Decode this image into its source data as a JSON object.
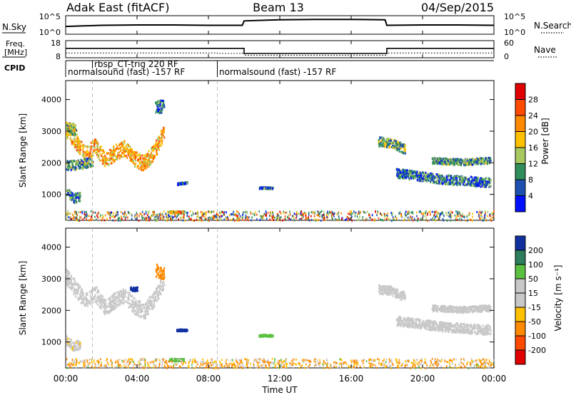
{
  "header": {
    "station": "Adak East (fitACF)",
    "beam": "Beam 13",
    "date": "04/Sep/2015"
  },
  "params_panel": {
    "nsky_label": "N.Sky",
    "nsky_ticks": [
      "10^5",
      "10^0"
    ],
    "nsearch_label": "N.Search",
    "freq_label_1": "Freq.",
    "freq_label_2": "[MHz]",
    "freq_ticks": [
      "18",
      "8"
    ],
    "nave_ticks": [
      "60",
      "0"
    ],
    "nave_label": "Nave",
    "cpid_label": "CPID",
    "cpid_segments": [
      {
        "label": "rbsp_CT-trig 220 RF",
        "start_hour": 1.5,
        "end_hour": 8.5
      },
      {
        "label": "normalsound (fast) -157 RF",
        "start_hour": 0,
        "end_hour": 8.5
      },
      {
        "label": "normalsound (fast) -157 RF",
        "start_hour": 8.5,
        "end_hour": 24
      }
    ]
  },
  "axes": {
    "x_label": "Time UT",
    "x_ticks": [
      "00:00",
      "04:00",
      "08:00",
      "12:00",
      "16:00",
      "20:00",
      "00:00"
    ],
    "y_label": "Slant Range [km]",
    "y_ticks": [
      "4000",
      "3000",
      "2000",
      "1000"
    ]
  },
  "power_scale": {
    "label": "Power [dB]",
    "ticks": [
      "28",
      "24",
      "20",
      "16",
      "12",
      "8",
      "4"
    ],
    "colors": [
      "#e00000",
      "#ff4a00",
      "#ff8a00",
      "#ffc000",
      "#a8c860",
      "#2f8e5c",
      "#1e50b0",
      "#0010ff"
    ]
  },
  "velocity_scale": {
    "label": "Velocity [m s⁻¹]",
    "ticks": [
      "200",
      "100",
      "50",
      "15",
      "-15",
      "-50",
      "-100",
      "-200"
    ],
    "colors": [
      "#1030a0",
      "#2e7d5c",
      "#5cc040",
      "#c8c8c8",
      "#c8c8c8",
      "#ffc000",
      "#ff8a00",
      "#ff4a00",
      "#e00000"
    ]
  },
  "chart_data": [
    {
      "type": "line",
      "title": "N.Sky / N.Search",
      "x_range_hours": [
        0,
        24
      ],
      "series": [
        {
          "name": "N.Sky",
          "x": [
            0,
            1,
            2,
            4,
            6,
            8,
            9.9,
            10,
            12,
            14,
            16,
            17.9,
            18,
            20,
            22,
            24
          ],
          "y": [
            0.42,
            0.45,
            0.48,
            0.5,
            0.5,
            0.48,
            0.48,
            0.72,
            0.78,
            0.8,
            0.8,
            0.78,
            0.48,
            0.5,
            0.5,
            0.48
          ]
        }
      ]
    },
    {
      "type": "line",
      "title": "Freq. [MHz] / Nave",
      "x_range_hours": [
        0,
        24
      ],
      "y_range": [
        8,
        18
      ],
      "series": [
        {
          "name": "Freq.",
          "x": [
            0,
            9.9,
            10,
            17.9,
            18,
            24
          ],
          "y": [
            13.5,
            13.5,
            10.5,
            10.5,
            13.5,
            13.5
          ]
        },
        {
          "name": "Nave",
          "x": [
            0,
            8,
            8.5,
            9.9,
            10,
            17.9,
            18,
            24
          ],
          "y": [
            10.8,
            10.8,
            10.5,
            10.8,
            9.4,
            9.4,
            10.8,
            10.8
          ]
        }
      ]
    },
    {
      "type": "heatmap",
      "title": "Power [dB]",
      "xlabel": "Time UT",
      "ylabel": "Slant Range [km]",
      "x_range_hours": [
        0,
        24
      ],
      "ylim": [
        180,
        4600
      ],
      "value_range": [
        0,
        32
      ],
      "regions": [
        {
          "t0": 0.0,
          "t1": 5.5,
          "r_center": [
            3100,
            2700,
            2300,
            2550,
            2100,
            2350,
            2500,
            2150,
            2000,
            2400,
            3000
          ],
          "spread": 250,
          "value": 20
        },
        {
          "t0": 0.0,
          "t1": 1.5,
          "r_center": [
            1950,
            1950,
            2000,
            2050
          ],
          "spread": 150,
          "value": 10
        },
        {
          "t0": 0.0,
          "t1": 0.8,
          "r_center": [
            1100,
            900,
            950
          ],
          "spread": 150,
          "value": 9
        },
        {
          "t0": 0.0,
          "t1": 0.6,
          "r_center": [
            3150,
            3100,
            3050
          ],
          "spread": 180,
          "value": 14
        },
        {
          "t0": 5.8,
          "t1": 6.6,
          "r_center": [
            460,
            460
          ],
          "spread": 40,
          "value": 16
        },
        {
          "t0": 6.2,
          "t1": 6.8,
          "r_center": [
            1350,
            1400
          ],
          "spread": 30,
          "value": 6
        },
        {
          "t0": 10.8,
          "t1": 11.6,
          "r_center": [
            1230,
            1230
          ],
          "spread": 30,
          "value": 8
        },
        {
          "t0": 17.5,
          "t1": 19.0,
          "r_center": [
            2700,
            2650,
            2450
          ],
          "spread": 150,
          "value": 12
        },
        {
          "t0": 18.5,
          "t1": 23.8,
          "r_center": [
            1700,
            1600,
            1500,
            1450,
            1400
          ],
          "spread": 150,
          "value": 8
        },
        {
          "t0": 20.5,
          "t1": 23.8,
          "r_center": [
            2100,
            2050,
            2100
          ],
          "spread": 100,
          "value": 10
        },
        {
          "t0": 5.0,
          "t1": 5.5,
          "r_center": [
            3800
          ],
          "spread": 200,
          "value": 6
        }
      ],
      "ground_scatter_band": {
        "r_min": 200,
        "r_max": 500,
        "value_mix": [
          6,
          10,
          14,
          20,
          28
        ]
      }
    },
    {
      "type": "heatmap",
      "title": "Velocity [m s⁻¹]",
      "xlabel": "Time UT",
      "ylabel": "Slant Range [km]",
      "x_range_hours": [
        0,
        24
      ],
      "ylim": [
        180,
        4600
      ],
      "value_range": [
        -250,
        250
      ],
      "regions": [
        {
          "t0": 0.0,
          "t1": 5.5,
          "r_center": [
            3100,
            2700,
            2300,
            2550,
            2100,
            2350,
            2500,
            2150,
            2000,
            2400,
            3000
          ],
          "spread": 250,
          "value": 0
        },
        {
          "t0": 0.0,
          "t1": 0.8,
          "r_center": [
            1100,
            900,
            950
          ],
          "spread": 150,
          "value": -5
        },
        {
          "t0": 5.0,
          "t1": 5.5,
          "r_center": [
            3300,
            3200
          ],
          "spread": 200,
          "value": -60
        },
        {
          "t0": 3.6,
          "t1": 4.0,
          "r_center": [
            2700
          ],
          "spread": 60,
          "value": 200
        },
        {
          "t0": 5.8,
          "t1": 6.6,
          "r_center": [
            460,
            460
          ],
          "spread": 40,
          "value": 60
        },
        {
          "t0": 6.2,
          "t1": 6.8,
          "r_center": [
            1400,
            1400
          ],
          "spread": 30,
          "value": 200
        },
        {
          "t0": 10.8,
          "t1": 11.6,
          "r_center": [
            1230,
            1230
          ],
          "spread": 30,
          "value": 60
        },
        {
          "t0": 17.5,
          "t1": 19.0,
          "r_center": [
            2700,
            2650,
            2450
          ],
          "spread": 150,
          "value": 0
        },
        {
          "t0": 18.5,
          "t1": 23.8,
          "r_center": [
            1700,
            1600,
            1500,
            1450,
            1400
          ],
          "spread": 150,
          "value": 0
        },
        {
          "t0": 20.5,
          "t1": 23.8,
          "r_center": [
            2100,
            2050,
            2100
          ],
          "spread": 100,
          "value": 0
        }
      ],
      "ground_scatter_band": {
        "r_min": 200,
        "r_max": 500,
        "value_mix": [
          -50,
          -20,
          -60,
          30,
          0
        ]
      }
    }
  ]
}
